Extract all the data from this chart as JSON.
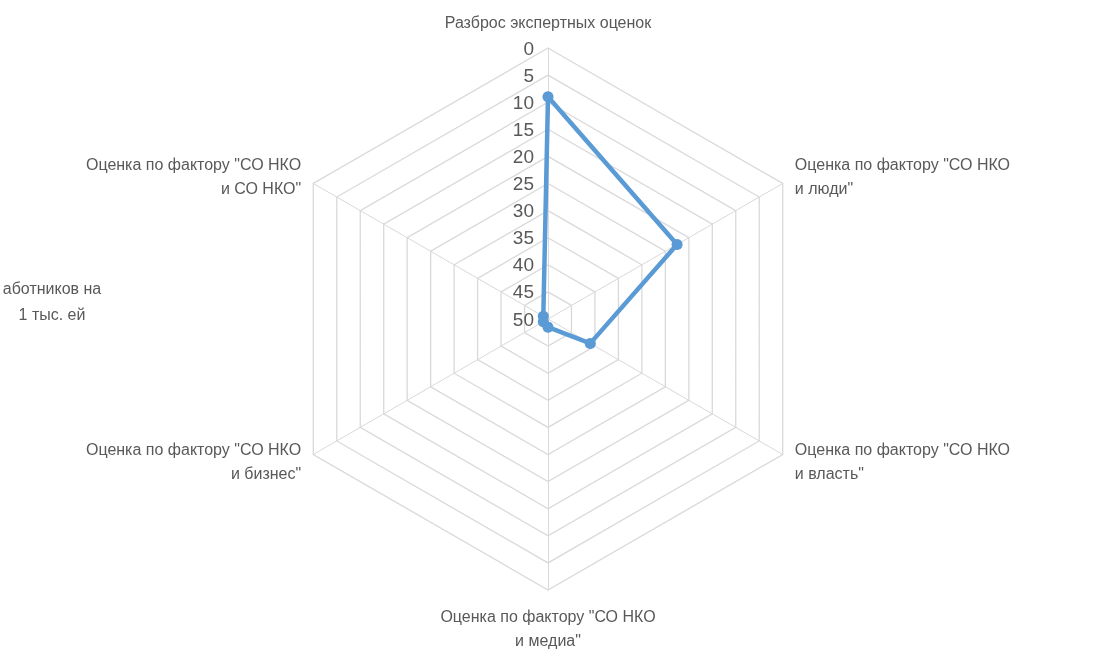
{
  "chart_data": {
    "type": "radar",
    "categories": [
      "Разброс экспертных оценок",
      "Оценка по фактору \"СО НКО и люди\"",
      "Оценка по фактору \"СО НКО и власть\"",
      "Оценка по фактору \"СО НКО и медиа\"",
      "Оценка по фактору \"СО НКО и бизнес\"",
      "Оценка по фактору \"СО НКО и СО НКО\""
    ],
    "series": [
      {
        "color": "#5b9bd5",
        "values": [
          9,
          22.5,
          41,
          48.5,
          49,
          49
        ]
      }
    ],
    "ylim": [
      50,
      0
    ],
    "yticks": [
      0,
      5,
      10,
      15,
      20,
      25,
      30,
      35,
      40,
      45,
      50
    ],
    "marker": "circle",
    "line_style": "solid",
    "grid": true,
    "annotations": [
      "аботников на 1 тыс. ей"
    ]
  }
}
